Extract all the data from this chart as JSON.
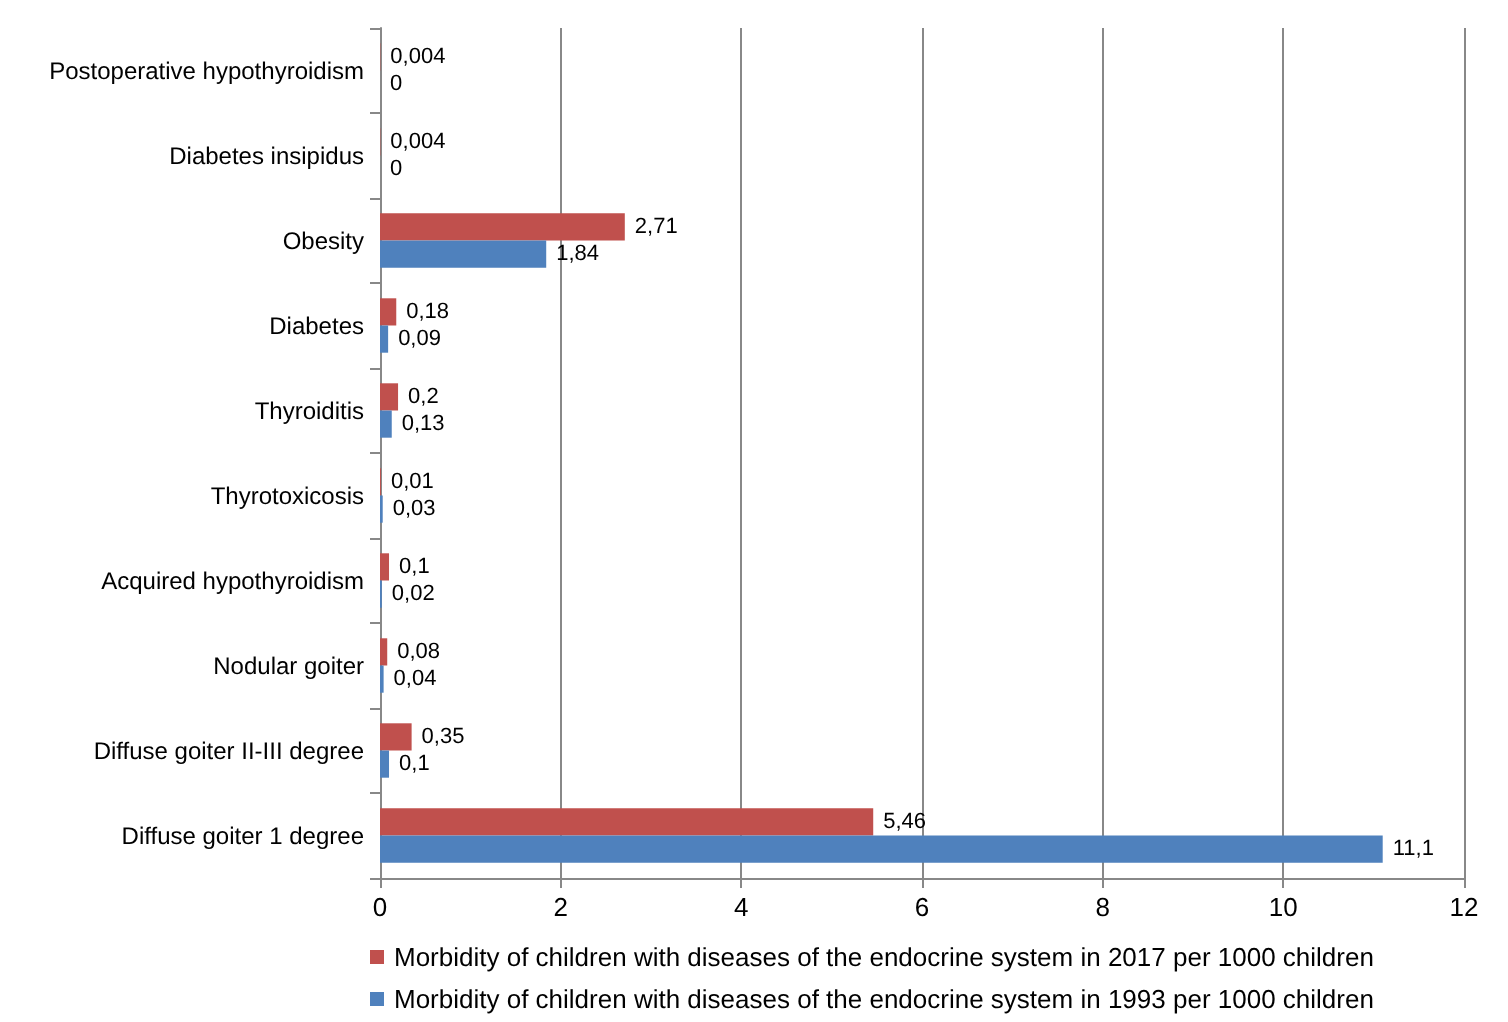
{
  "chart_data": {
    "type": "bar",
    "orientation": "horizontal",
    "categories": [
      "Postoperative hypothyroidism",
      "Diabetes insipidus",
      "Obesity",
      "Diabetes",
      "Thyroiditis",
      "Thyrotoxicosis",
      "Acquired hypothyroidism",
      "Nodular goiter",
      "Diffuse goiter II-III degree",
      "Diffuse goiter 1 degree"
    ],
    "series": [
      {
        "name": "Morbidity of children with diseases of the endocrine system in 2017 per 1000 children",
        "color": "#c0504d",
        "values": [
          0.004,
          0.004,
          2.71,
          0.18,
          0.2,
          0.01,
          0.1,
          0.08,
          0.35,
          5.46
        ],
        "value_labels": [
          "0,004",
          "0,004",
          "2,71",
          "0,18",
          "0,2",
          "0,01",
          "0,1",
          "0,08",
          "0,35",
          "5,46"
        ]
      },
      {
        "name": "Morbidity of children with diseases of the endocrine system in 1993 per 1000 children",
        "color": "#4f81bd",
        "values": [
          0,
          0,
          1.84,
          0.09,
          0.13,
          0.03,
          0.02,
          0.04,
          0.1,
          11.1
        ],
        "value_labels": [
          "0",
          "0",
          "1,84",
          "0,09",
          "0,13",
          "0,03",
          "0,02",
          "0,04",
          "0,1",
          "11,1"
        ]
      }
    ],
    "xlim": [
      0,
      12
    ],
    "xticks": [
      0,
      2,
      4,
      6,
      8,
      10,
      12
    ],
    "grid": "x",
    "legend": "bottom"
  }
}
